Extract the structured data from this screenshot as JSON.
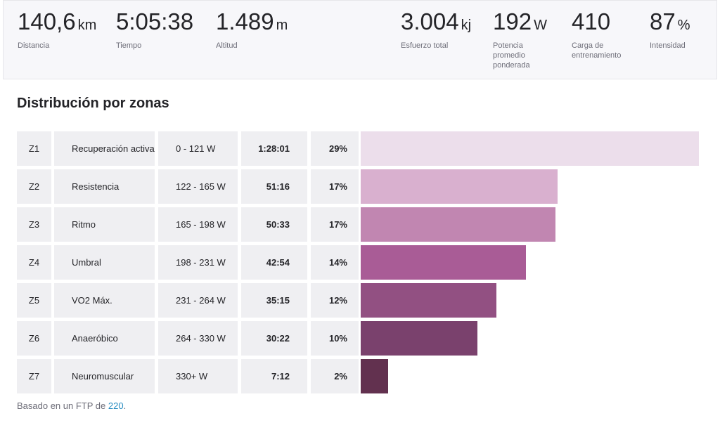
{
  "stats": [
    {
      "value": "140,6",
      "unit": "km",
      "label": "Distancia"
    },
    {
      "value": "5:05:38",
      "unit": "",
      "label": "Tiempo"
    },
    {
      "value": "1.489",
      "unit": "m",
      "label": "Altitud"
    },
    {
      "value": "3.004",
      "unit": "kj",
      "label": "Esfuerzo total"
    },
    {
      "value": "192",
      "unit": "W",
      "label": "Potencia\npromedio\nponderada"
    },
    {
      "value": "410",
      "unit": "",
      "label": "Carga de\nentrenamiento"
    },
    {
      "value": "87",
      "unit": "%",
      "label": "Intensidad"
    }
  ],
  "section_title": "Distribución por zonas",
  "zones": [
    {
      "zone": "Z1",
      "name": "Recuperación activa",
      "range": "0 - 121 W",
      "time": "1:28:01",
      "percent": "29%",
      "fraction": 1.0,
      "color": "#ecdeeb"
    },
    {
      "zone": "Z2",
      "name": "Resistencia",
      "range": "122 - 165 W",
      "time": "51:16",
      "percent": "17%",
      "fraction": 0.583,
      "color": "#d9b0cf"
    },
    {
      "zone": "Z3",
      "name": "Ritmo",
      "range": "165 - 198 W",
      "time": "50:33",
      "percent": "17%",
      "fraction": 0.575,
      "color": "#c186b1"
    },
    {
      "zone": "Z4",
      "name": "Umbral",
      "range": "198 - 231 W",
      "time": "42:54",
      "percent": "14%",
      "fraction": 0.488,
      "color": "#a95c96"
    },
    {
      "zone": "Z5",
      "name": "VO2 Máx.",
      "range": "231 - 264 W",
      "time": "35:15",
      "percent": "12%",
      "fraction": 0.401,
      "color": "#925082"
    },
    {
      "zone": "Z6",
      "name": "Anaeróbico",
      "range": "264 - 330 W",
      "time": "30:22",
      "percent": "10%",
      "fraction": 0.345,
      "color": "#7a416d"
    },
    {
      "zone": "Z7",
      "name": "Neuromuscular",
      "range": "330+ W",
      "time": "7:12",
      "percent": "2%",
      "fraction": 0.082,
      "color": "#62314f"
    }
  ],
  "footer": {
    "prefix": "Basado en un FTP de ",
    "ftp": "220",
    "suffix": "."
  }
}
